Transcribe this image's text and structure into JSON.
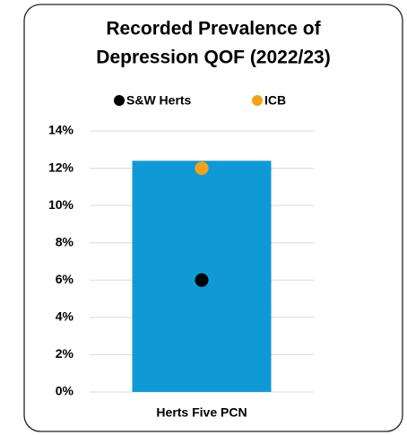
{
  "chart_data": {
    "type": "bar",
    "title": [
      "Recorded Prevalence of",
      "Depression QOF (2022/23)"
    ],
    "categories": [
      "Herts Five PCN"
    ],
    "values": [
      12.4
    ],
    "color": "#0f9ad6",
    "series": [
      {
        "name": "S&W Herts",
        "color": "#000000",
        "values": [
          6.0
        ]
      },
      {
        "name": "ICB",
        "color": "#f5a21b",
        "values": [
          12.0
        ]
      }
    ],
    "ylim": [
      0,
      14
    ],
    "yticks": [
      {
        "value": 0,
        "label": "0%"
      },
      {
        "value": 2,
        "label": "2%"
      },
      {
        "value": 4,
        "label": "4%"
      },
      {
        "value": 6,
        "label": "6%"
      },
      {
        "value": 8,
        "label": "8%"
      },
      {
        "value": 10,
        "label": "10%"
      },
      {
        "value": 12,
        "label": "12%"
      },
      {
        "value": 14,
        "label": "14%"
      }
    ],
    "grid": true
  }
}
